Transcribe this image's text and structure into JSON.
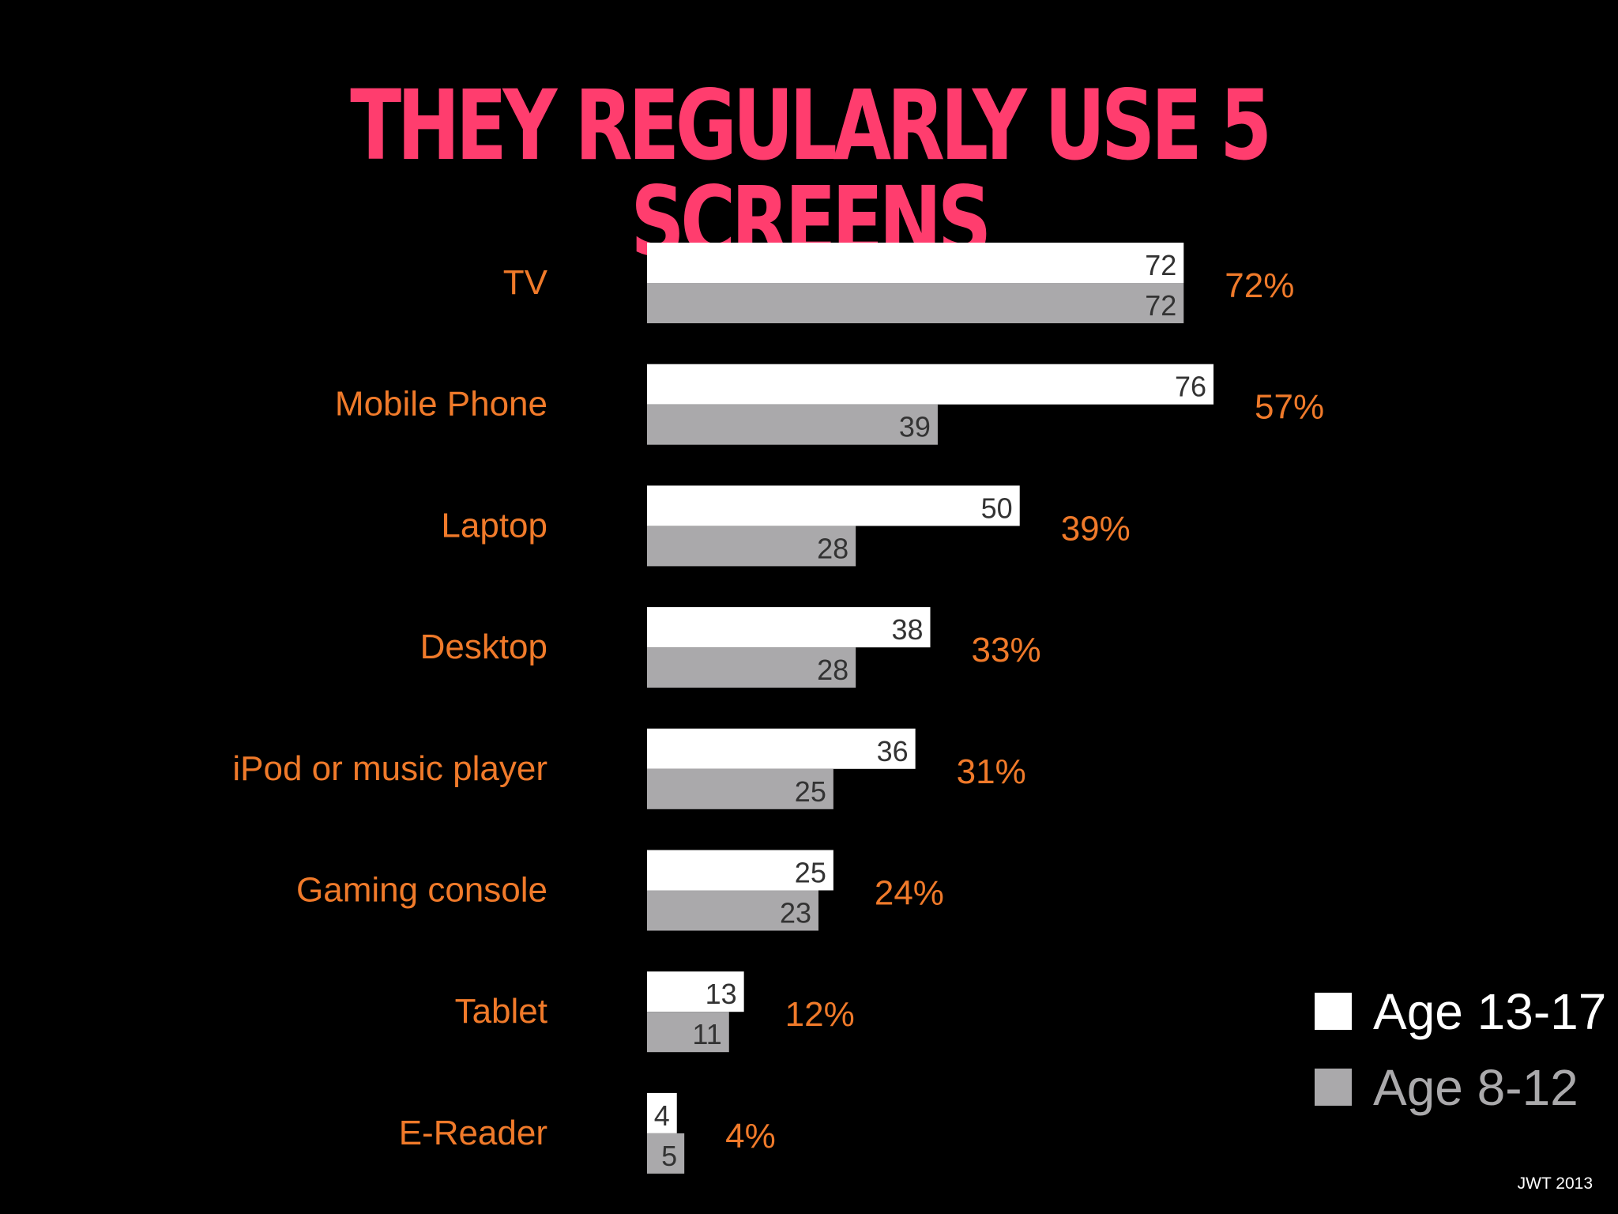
{
  "chart_data": {
    "type": "bar",
    "title": "THEY REGULARLY USE 5 SCREENS",
    "categories": [
      "TV",
      "Mobile Phone",
      "Laptop",
      "Desktop",
      "iPod or music player",
      "Gaming console",
      "Tablet",
      "E-Reader"
    ],
    "series": [
      {
        "name": "Age 13-17",
        "values": [
          72,
          76,
          50,
          38,
          36,
          25,
          13,
          4
        ],
        "color": "#ffffff"
      },
      {
        "name": "Age 8-12",
        "values": [
          72,
          39,
          28,
          28,
          25,
          23,
          11,
          5
        ],
        "color": "#aaa9ab"
      }
    ],
    "totals": [
      "72%",
      "57%",
      "39%",
      "33%",
      "31%",
      "24%",
      "12%",
      "4%"
    ],
    "xlim": [
      0,
      76
    ],
    "legend_position": "bottom-right",
    "category_label_color": "#f07a2a",
    "total_label_color": "#f07a2a",
    "title_color": "#ff3d6e",
    "grid": false
  },
  "credit": "JWT 2013"
}
